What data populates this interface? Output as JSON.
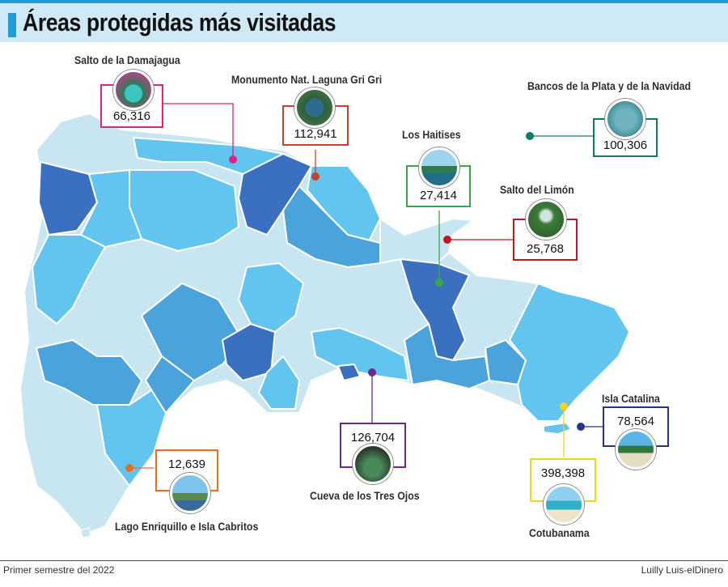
{
  "header": {
    "title": "Áreas protegidas más visitadas"
  },
  "colors": {
    "accent": "#1f9bd7",
    "light": "#c7e6f2",
    "mid": "#62c5ef",
    "medium": "#4ba3dc",
    "dark": "#3b6fc0"
  },
  "areas": [
    {
      "name": "Salto de la Damajagua",
      "visitors": "66,316",
      "color": "#e0217e",
      "photo": "waterfall-photo"
    },
    {
      "name": "Monumento Nat. Laguna Gri Gri",
      "visitors": "112,941",
      "color": "#c7412a",
      "photo": "lagoon-photo"
    },
    {
      "name": "Bancos de la Plata y de la Navidad",
      "visitors": "100,306",
      "color": "#0e7c64",
      "photo": "whales-photo"
    },
    {
      "name": "Los Haitises",
      "visitors": "27,414",
      "color": "#3aa84a",
      "photo": "islets-photo"
    },
    {
      "name": "Salto del Limón",
      "visitors": "25,768",
      "color": "#c4161c",
      "photo": "waterfall-photo"
    },
    {
      "name": "Isla Catalina",
      "visitors": "78,564",
      "color": "#23348e",
      "photo": "palm-beach-photo"
    },
    {
      "name": "Cotubanama",
      "visitors": "398,398",
      "color": "#f2d61a",
      "photo": "beach-photo"
    },
    {
      "name": "Cueva de los Tres Ojos",
      "visitors": "126,704",
      "color": "#6a2a8c",
      "photo": "cave-photo"
    },
    {
      "name": "Lago Enriquillo e Isla Cabritos",
      "visitors": "12,639",
      "color": "#ef6c1f",
      "photo": "cactus-photo"
    }
  ],
  "footer": {
    "left": "Primer semestre del 2022",
    "right": "Luilly Luis-elDinero"
  }
}
